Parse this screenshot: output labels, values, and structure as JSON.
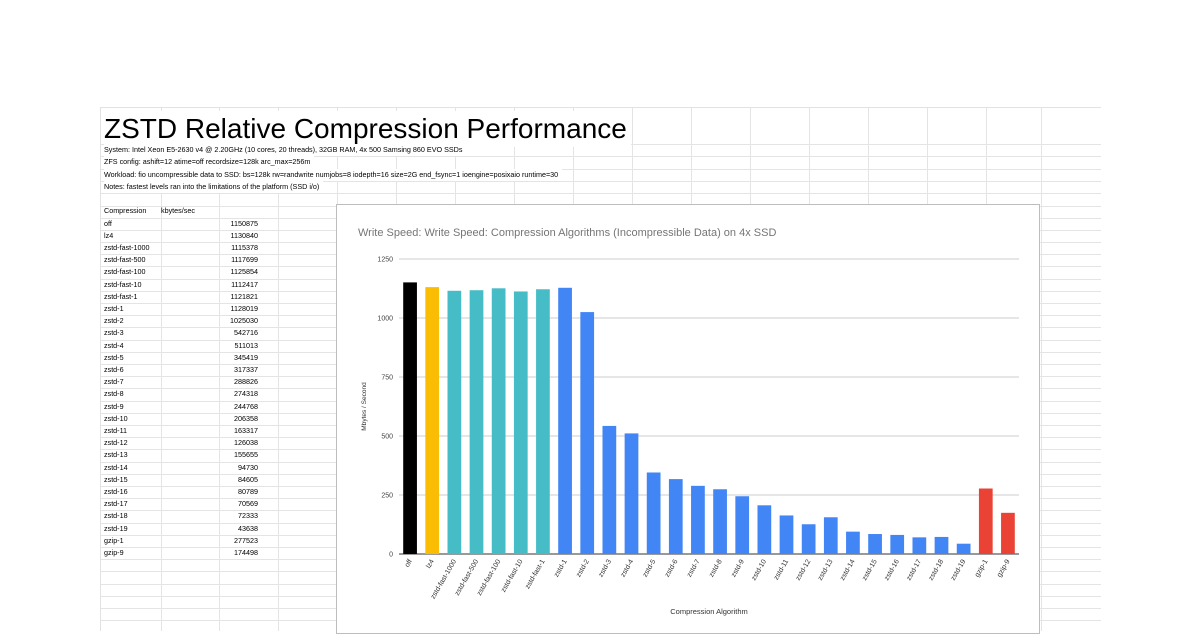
{
  "sheet": {
    "title": "ZSTD Relative Compression Performance",
    "notes": [
      "System: Intel Xeon E5-2630 v4 @ 2.20GHz (10 cores, 20 threads), 32GB RAM, 4x 500 Samsing 860 EVO SSDs",
      "ZFS config: ashift=12 atime=off recordsize=128k arc_max=256m",
      "Workload: fio uncompressible data to SSD: bs=128k rw=randwrite numjobs=8 iodepth=16 size=2G end_fsync=1 ioengine=posixaio runtime=30",
      "Notes: fastest levels ran into the limitations of the platform (SSD i/o)"
    ],
    "table": {
      "headers": [
        "Compression",
        "kbytes/sec"
      ],
      "rows": [
        [
          "off",
          "1150875"
        ],
        [
          "lz4",
          "1130840"
        ],
        [
          "zstd-fast-1000",
          "1115378"
        ],
        [
          "zstd-fast-500",
          "1117699"
        ],
        [
          "zstd-fast-100",
          "1125854"
        ],
        [
          "zstd-fast-10",
          "1112417"
        ],
        [
          "zstd-fast-1",
          "1121821"
        ],
        [
          "zstd-1",
          "1128019"
        ],
        [
          "zstd-2",
          "1025030"
        ],
        [
          "zstd-3",
          "542716"
        ],
        [
          "zstd-4",
          "511013"
        ],
        [
          "zstd-5",
          "345419"
        ],
        [
          "zstd-6",
          "317337"
        ],
        [
          "zstd-7",
          "288826"
        ],
        [
          "zstd-8",
          "274318"
        ],
        [
          "zstd-9",
          "244768"
        ],
        [
          "zstd-10",
          "206358"
        ],
        [
          "zstd-11",
          "163317"
        ],
        [
          "zstd-12",
          "126038"
        ],
        [
          "zstd-13",
          "155655"
        ],
        [
          "zstd-14",
          "94730"
        ],
        [
          "zstd-15",
          "84605"
        ],
        [
          "zstd-16",
          "80789"
        ],
        [
          "zstd-17",
          "70569"
        ],
        [
          "zstd-18",
          "72333"
        ],
        [
          "zstd-19",
          "43638"
        ],
        [
          "gzip-1",
          "277523"
        ],
        [
          "gzip-9",
          "174498"
        ]
      ]
    }
  },
  "chart_data": {
    "type": "bar",
    "title": "Write Speed: Write Speed: Compression Algorithms (Incompressible Data)  on 4x SSD",
    "xlabel": "Compression Algorithm",
    "ylabel": "Mbytes / Second",
    "ylim": [
      0,
      1250
    ],
    "yticks": [
      0,
      250,
      500,
      750,
      1000,
      1250
    ],
    "grid": true,
    "categories": [
      "off",
      "lz4",
      "zstd-fast-1000",
      "zstd-fast-500",
      "zstd-fast-100",
      "zstd-fast-10",
      "zstd-fast-1",
      "zstd-1",
      "zstd-2",
      "zstd-3",
      "zstd-4",
      "zstd-5",
      "zstd-6",
      "zstd-7",
      "zstd-8",
      "zstd-9",
      "zstd-10",
      "zstd-11",
      "zstd-12",
      "zstd-13",
      "zstd-14",
      "zstd-15",
      "zstd-16",
      "zstd-17",
      "zstd-18",
      "zstd-19",
      "gzip-1",
      "gzip-9"
    ],
    "values": [
      1150.875,
      1130.84,
      1115.378,
      1117.699,
      1125.854,
      1112.417,
      1121.821,
      1128.019,
      1025.03,
      542.716,
      511.013,
      345.419,
      317.337,
      288.826,
      274.318,
      244.768,
      206.358,
      163.317,
      126.038,
      155.655,
      94.73,
      84.605,
      80.789,
      70.569,
      72.333,
      43.638,
      277.523,
      174.498
    ],
    "colors": [
      "#000000",
      "#fbbc04",
      "#46bdc6",
      "#46bdc6",
      "#46bdc6",
      "#46bdc6",
      "#46bdc6",
      "#4285f4",
      "#4285f4",
      "#4285f4",
      "#4285f4",
      "#4285f4",
      "#4285f4",
      "#4285f4",
      "#4285f4",
      "#4285f4",
      "#4285f4",
      "#4285f4",
      "#4285f4",
      "#4285f4",
      "#4285f4",
      "#4285f4",
      "#4285f4",
      "#4285f4",
      "#4285f4",
      "#4285f4",
      "#ea4335",
      "#ea4335"
    ]
  }
}
